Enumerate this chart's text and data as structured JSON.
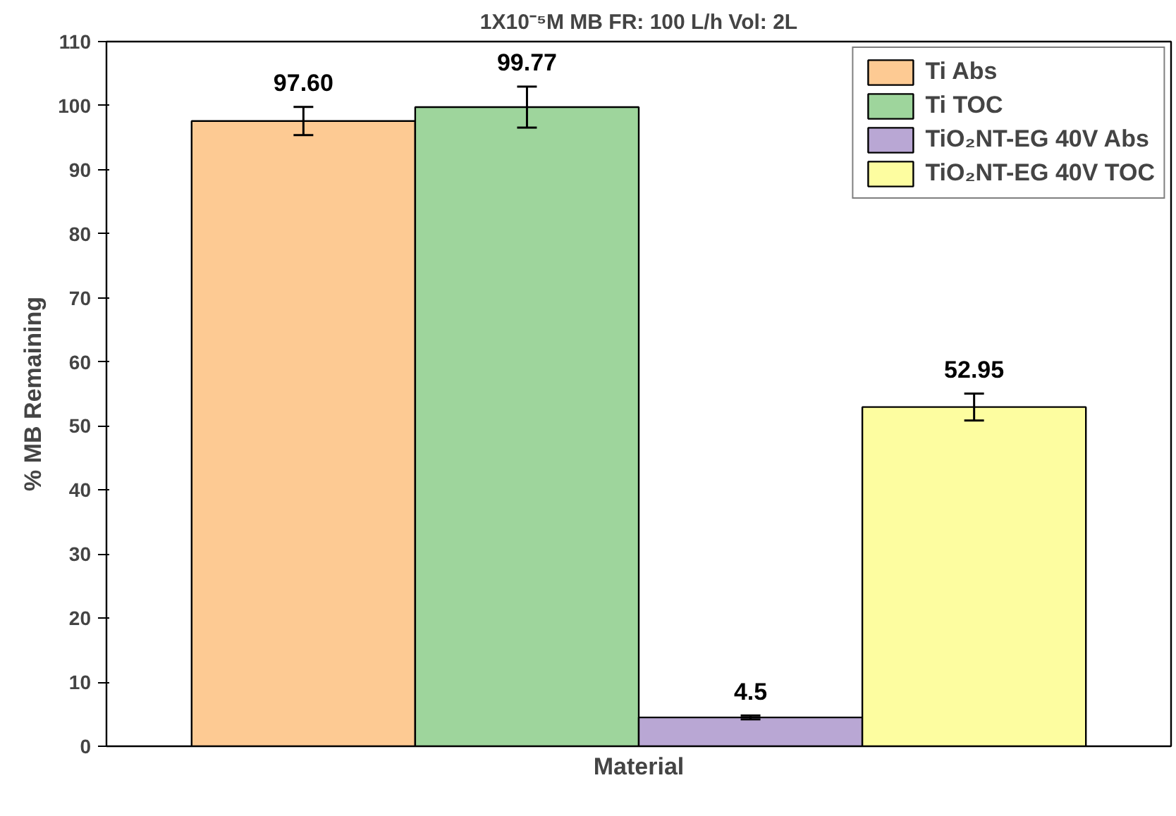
{
  "chart_data": {
    "type": "bar",
    "title": "1X10⁻⁵M MB FR: 100 L/h Vol: 2L",
    "xlabel": "Material",
    "ylabel": "% MB Remaining",
    "categories": [
      null
    ],
    "series": [
      {
        "name": "Ti Abs",
        "color": "#fdca93",
        "values": [
          97.6
        ],
        "errors": [
          2.2
        ],
        "value_labels": [
          "97.60"
        ]
      },
      {
        "name": "Ti TOC",
        "color": "#9ed59c",
        "values": [
          99.77
        ],
        "errors": [
          3.2
        ],
        "value_labels": [
          "99.77"
        ]
      },
      {
        "name": "TiO₂NT-EG 40V Abs",
        "color": "#b9a7d4",
        "values": [
          4.5
        ],
        "errors": [
          0.3
        ],
        "value_labels": [
          "4.5"
        ]
      },
      {
        "name": "TiO₂NT-EG 40V TOC",
        "color": "#fdfda0",
        "values": [
          52.95
        ],
        "errors": [
          2.1
        ],
        "value_labels": [
          "52.95"
        ]
      }
    ],
    "ylim": [
      0,
      110
    ],
    "yticks": [
      0,
      10,
      20,
      30,
      40,
      50,
      60,
      70,
      80,
      90,
      100,
      110
    ],
    "grid": false,
    "legend": "top right"
  }
}
